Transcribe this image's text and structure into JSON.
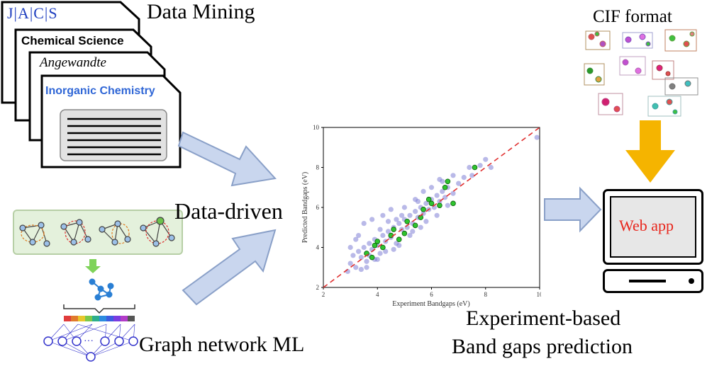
{
  "journals": {
    "jacs": "J|A|C|S",
    "chemical_science": "Chemical Science",
    "angewandte": "Angewandte",
    "inorganic_chemistry": "Inorganic Chemistry"
  },
  "labels": {
    "data_mining": "Data Mining",
    "data_driven": "Data-driven",
    "graph_network_ml": "Graph network ML",
    "cif_format": "CIF format",
    "web_app": "Web app",
    "caption_line1": "Experiment-based",
    "caption_line2": "Band gaps prediction"
  },
  "colors": {
    "jacs_blue": "#1f3fbf",
    "inorganic_blue": "#2f66d6",
    "arrow_fill": "#c9d6ee",
    "arrow_stroke": "#8aa0c8",
    "cif_arrow": "#f5b400",
    "web_app_red": "#e8261c",
    "scatter_point": "#7f7fd6",
    "scatter_highlight": "#2ec42e",
    "diagonal": "#e03030"
  },
  "chart_data": {
    "type": "scatter",
    "xlabel": "Experiment Bandgaps (eV)",
    "ylabel": "Predicted Bandgaps (eV)",
    "xlim": [
      2,
      10
    ],
    "ylim": [
      2,
      10
    ],
    "x_ticks": [
      "2",
      "4",
      "6",
      "8",
      "10"
    ],
    "y_ticks": [
      "2",
      "4",
      "6",
      "8",
      "10"
    ],
    "reference_line": "y = x",
    "series": [
      {
        "points": [
          [
            3.0,
            3.2
          ],
          [
            3.1,
            3.6
          ],
          [
            3.2,
            3.0
          ],
          [
            3.3,
            3.8
          ],
          [
            3.4,
            3.5
          ],
          [
            3.5,
            4.0
          ],
          [
            3.6,
            3.3
          ],
          [
            3.7,
            4.2
          ],
          [
            3.8,
            3.9
          ],
          [
            3.9,
            4.4
          ],
          [
            4.0,
            4.1
          ],
          [
            4.1,
            3.7
          ],
          [
            4.2,
            4.6
          ],
          [
            4.3,
            4.3
          ],
          [
            4.4,
            4.8
          ],
          [
            4.5,
            4.5
          ],
          [
            4.6,
            5.0
          ],
          [
            4.7,
            4.2
          ],
          [
            4.8,
            5.2
          ],
          [
            4.9,
            4.9
          ],
          [
            5.0,
            5.4
          ],
          [
            5.1,
            5.0
          ],
          [
            5.2,
            5.6
          ],
          [
            5.3,
            5.2
          ],
          [
            5.4,
            5.8
          ],
          [
            5.5,
            5.5
          ],
          [
            5.6,
            6.0
          ],
          [
            5.7,
            5.7
          ],
          [
            5.8,
            6.2
          ],
          [
            5.9,
            5.9
          ],
          [
            6.0,
            6.4
          ],
          [
            6.1,
            6.0
          ],
          [
            6.2,
            6.6
          ],
          [
            6.3,
            6.3
          ],
          [
            6.4,
            6.8
          ],
          [
            6.5,
            6.5
          ],
          [
            6.6,
            7.0
          ],
          [
            6.8,
            6.7
          ],
          [
            7.0,
            7.2
          ],
          [
            7.2,
            7.5
          ],
          [
            7.5,
            7.6
          ],
          [
            7.8,
            8.1
          ],
          [
            8.0,
            8.4
          ],
          [
            8.2,
            8.0
          ],
          [
            9.9,
            9.5
          ],
          [
            3.5,
            5.2
          ],
          [
            3.8,
            5.4
          ],
          [
            4.2,
            5.6
          ],
          [
            4.0,
            3.4
          ],
          [
            4.6,
            3.9
          ],
          [
            5.2,
            4.6
          ],
          [
            5.6,
            5.0
          ],
          [
            6.2,
            5.6
          ],
          [
            6.6,
            6.1
          ],
          [
            3.3,
            4.6
          ],
          [
            4.4,
            5.3
          ],
          [
            5.0,
            6.0
          ],
          [
            5.4,
            6.4
          ],
          [
            6.0,
            7.0
          ],
          [
            6.4,
            7.3
          ],
          [
            3.6,
            3.0
          ],
          [
            4.8,
            4.1
          ],
          [
            5.8,
            5.3
          ],
          [
            4.1,
            4.9
          ],
          [
            4.9,
            5.6
          ],
          [
            5.5,
            6.3
          ],
          [
            3.9,
            3.4
          ],
          [
            4.3,
            3.8
          ],
          [
            6.8,
            7.6
          ],
          [
            7.4,
            8.0
          ],
          [
            2.9,
            2.8
          ],
          [
            3.2,
            4.4
          ],
          [
            3.4,
            2.9
          ],
          [
            4.5,
            5.9
          ],
          [
            5.7,
            6.8
          ],
          [
            6.3,
            7.4
          ],
          [
            4.7,
            5.4
          ],
          [
            5.3,
            4.8
          ],
          [
            3.0,
            4.0
          ],
          [
            3.7,
            3.6
          ]
        ]
      },
      {
        "points": [
          [
            3.6,
            3.7
          ],
          [
            3.9,
            4.1
          ],
          [
            4.2,
            4.0
          ],
          [
            4.5,
            4.6
          ],
          [
            4.8,
            4.4
          ],
          [
            5.1,
            5.3
          ],
          [
            5.4,
            5.1
          ],
          [
            5.7,
            5.9
          ],
          [
            6.0,
            6.2
          ],
          [
            6.3,
            6.1
          ],
          [
            6.5,
            7.0
          ],
          [
            6.6,
            7.3
          ],
          [
            7.6,
            8.0
          ],
          [
            5.0,
            4.7
          ],
          [
            4.0,
            4.3
          ],
          [
            5.6,
            5.5
          ],
          [
            6.8,
            6.2
          ],
          [
            3.8,
            3.5
          ],
          [
            4.6,
            4.9
          ],
          [
            5.9,
            6.4
          ]
        ]
      }
    ]
  }
}
